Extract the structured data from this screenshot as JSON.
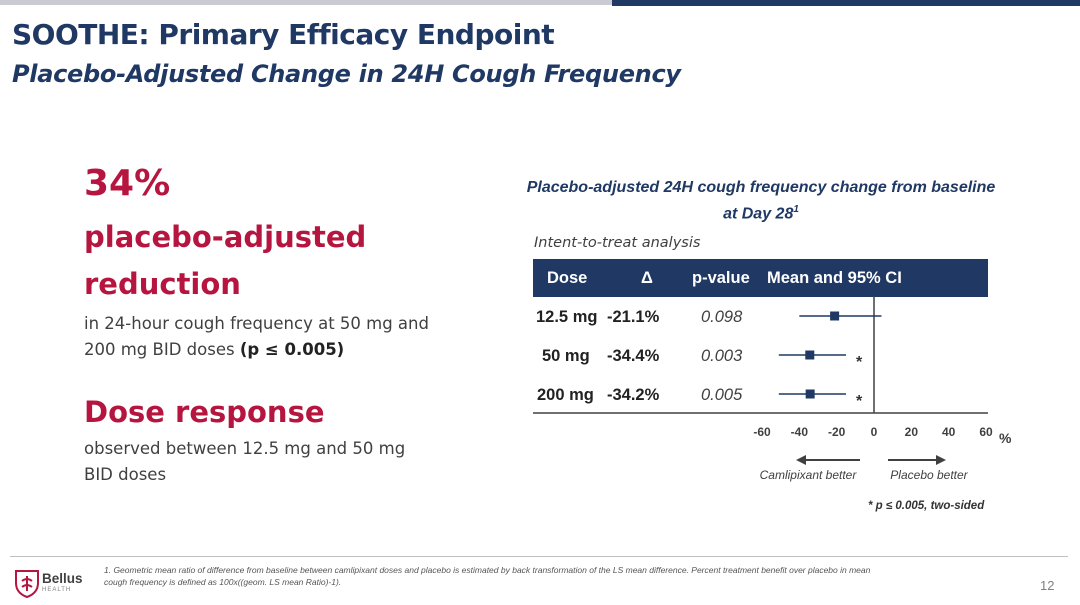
{
  "header": {
    "title": "SOOTHE: Primary Efficacy Endpoint",
    "subtitle": "Placebo-Adjusted Change in 24H Cough Frequency"
  },
  "left": {
    "headline_value": "34%",
    "headline_line1": "placebo-adjusted",
    "headline_line2": "reduction",
    "desc_line1": "in 24-hour cough frequency at 50 mg and",
    "desc_line2_prefix": "200 mg BID doses ",
    "desc_line2_bold": "(p ≤ 0.005)",
    "dose_title": "Dose response",
    "dose_line1": "observed between 12.5 mg and 50 mg",
    "dose_line2": "BID doses"
  },
  "chart_data": {
    "type": "forest",
    "title": "Placebo-adjusted 24H cough frequency change from baseline at Day 28",
    "title_line1": "Placebo-adjusted 24H cough frequency change from baseline",
    "title_line2": "at Day 28",
    "title_footnote": "1",
    "analysis_label": "Intent-to-treat analysis",
    "columns": [
      "Dose",
      "Δ",
      "p-value",
      "Mean and 95% CI"
    ],
    "rows": [
      {
        "dose": "12.5 mg",
        "delta": "-21.1%",
        "p": "0.098",
        "mean": -21.1,
        "ci": [
          -40,
          4
        ],
        "significant": false
      },
      {
        "dose": "50 mg",
        "delta": "-34.4%",
        "p": "0.003",
        "mean": -34.4,
        "ci": [
          -51,
          -15
        ],
        "significant": true
      },
      {
        "dose": "200 mg",
        "delta": "-34.2%",
        "p": "0.005",
        "mean": -34.2,
        "ci": [
          -51,
          -15
        ],
        "significant": true
      }
    ],
    "xlim": [
      -60,
      60
    ],
    "xticks": [
      -60,
      -40,
      -20,
      0,
      20,
      40,
      60
    ],
    "xunit": "%",
    "left_label": "Camlipixant better",
    "right_label": "Placebo better",
    "sig_marker": "*",
    "footnote": "* p ≤ 0.005, two-sided",
    "colors": {
      "marker": "#1f3864",
      "header_bg": "#1f3864"
    }
  },
  "footer": {
    "note_line1": "1. Geometric mean ratio of difference from baseline between camlipixant doses and placebo is estimated by back transformation of the LS mean difference.  Percent treatment benefit over placebo in mean",
    "note_line2": "cough frequency is defined as 100x((geom. LS mean Ratio)-1).",
    "page_number": "12",
    "logo_text": "Bellus",
    "logo_sub": "HEALTH"
  }
}
